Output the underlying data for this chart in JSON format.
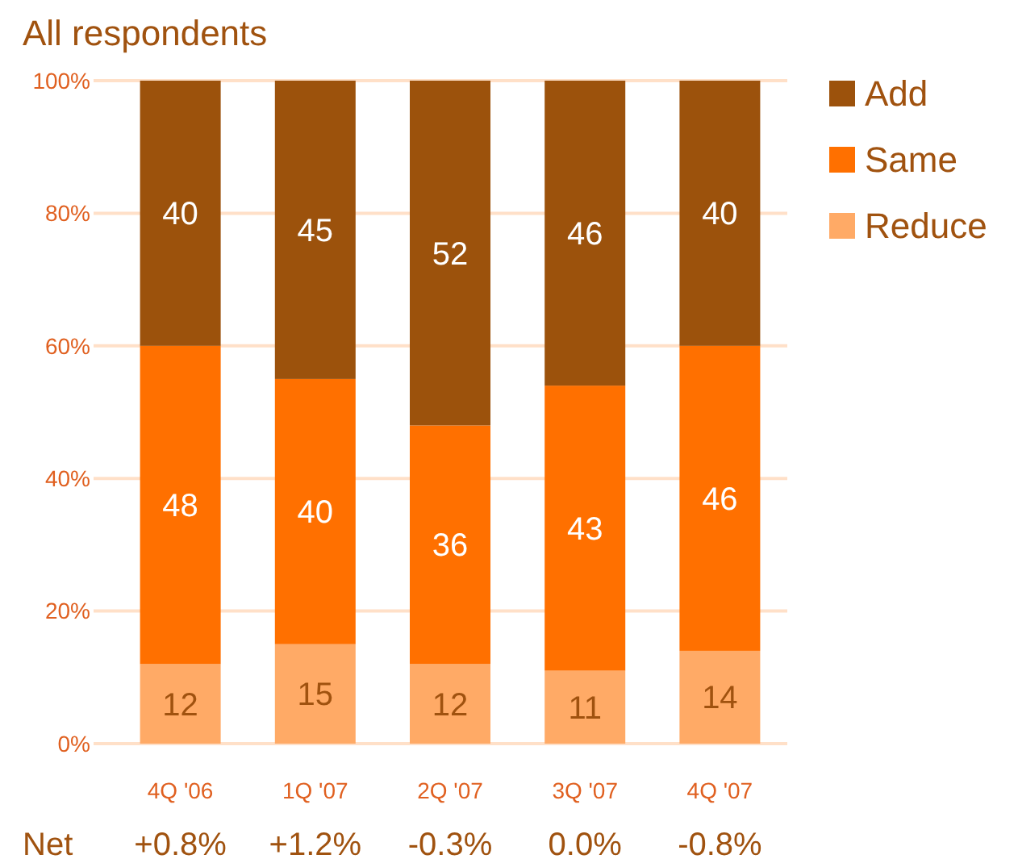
{
  "chart_data": {
    "type": "bar",
    "title": "All respondents",
    "stacked": true,
    "data_labels": true,
    "legend": "top right",
    "grid": "y",
    "categories": [
      "4Q '06",
      "1Q '07",
      "2Q '07",
      "3Q '07",
      "4Q '07"
    ],
    "series": [
      {
        "name": "Reduce",
        "color": "#ffaa66",
        "values": [
          12,
          15,
          12,
          11,
          14
        ]
      },
      {
        "name": "Same",
        "color": "#ff7000",
        "values": [
          48,
          40,
          36,
          43,
          46
        ]
      },
      {
        "name": "Add",
        "color": "#9c520c",
        "values": [
          40,
          45,
          52,
          46,
          40
        ]
      }
    ],
    "ylim": [
      0,
      100
    ],
    "yticks": [
      {
        "value": 0,
        "label": "0%"
      },
      {
        "value": 20,
        "label": "20%"
      },
      {
        "value": 40,
        "label": "40%"
      },
      {
        "value": 60,
        "label": "60%"
      },
      {
        "value": 80,
        "label": "80%"
      },
      {
        "value": 100,
        "label": "100%"
      }
    ],
    "annotations": [
      "Net",
      "+0.8%",
      "+1.2%",
      "-0.3%",
      "0.0%",
      "-0.8%"
    ]
  }
}
